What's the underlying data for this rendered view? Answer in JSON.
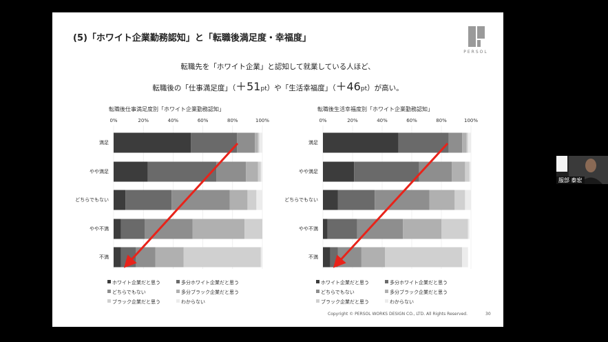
{
  "slide": {
    "title": "(5)「ホワイト企業勤務認知」と「転職後満足度・幸福度」",
    "logo_text": "PERSOL",
    "subtitle_line1": "転職先を「ホワイト企業」と認知して就業している人ほど、",
    "subtitle_line2_parts": [
      "転職後の「仕事満足度」（",
      "＋51",
      "pt",
      "）や「生活幸福度」（",
      "＋46",
      "pt",
      "）が高い。"
    ],
    "copyright": "Copyright © PERSOL WORKS DESIGN CO., LTD. All Rights Reserved.",
    "page_number": "30"
  },
  "chart_data": [
    {
      "type": "bar",
      "stacked": true,
      "orientation": "horizontal",
      "title": "転職後仕事満足度別「ホワイト企業勤務認知」",
      "categories": [
        "満足",
        "やや満足",
        "どちらでもない",
        "やや不満",
        "不満"
      ],
      "ticks": [
        "0%",
        "20%",
        "40%",
        "60%",
        "80%",
        "100%"
      ],
      "xlim": [
        0,
        100
      ],
      "series": [
        {
          "name": "ホワイト企業だと思う",
          "color": "#3c3c3c",
          "values": [
            52,
            23,
            8,
            5,
            5
          ]
        },
        {
          "name": "多分ホワイト企業だと思う",
          "color": "#6a6a6a",
          "values": [
            31,
            46,
            31,
            16,
            10
          ]
        },
        {
          "name": "どちらでもない",
          "color": "#8e8e8e",
          "values": [
            12,
            20,
            39,
            32,
            13
          ]
        },
        {
          "name": "多分ブラック企業だと思う",
          "color": "#b0b0b0",
          "values": [
            2,
            8,
            12,
            35,
            19
          ]
        },
        {
          "name": "ブラック企業だと思う",
          "color": "#d0d0d0",
          "values": [
            1,
            2,
            6,
            12,
            52
          ]
        },
        {
          "name": "わからない",
          "color": "#ececec",
          "values": [
            2,
            1,
            4,
            0,
            1
          ]
        }
      ]
    },
    {
      "type": "bar",
      "stacked": true,
      "orientation": "horizontal",
      "title": "転職後生活幸福度別「ホワイト企業勤務認知」",
      "categories": [
        "満足",
        "やや満足",
        "どちらでもない",
        "やや不満",
        "不満"
      ],
      "ticks": [
        "0%",
        "20%",
        "40%",
        "60%",
        "80%",
        "100%"
      ],
      "xlim": [
        0,
        100
      ],
      "series": [
        {
          "name": "ホワイト企業だと思う",
          "color": "#3c3c3c",
          "values": [
            51,
            21,
            10,
            3,
            5
          ]
        },
        {
          "name": "多分ホワイト企業だと思う",
          "color": "#6a6a6a",
          "values": [
            34,
            44,
            25,
            20,
            5
          ]
        },
        {
          "name": "どちらでもない",
          "color": "#8e8e8e",
          "values": [
            9,
            22,
            37,
            31,
            16
          ]
        },
        {
          "name": "多分ブラック企業だと思う",
          "color": "#b0b0b0",
          "values": [
            3,
            9,
            17,
            26,
            16
          ]
        },
        {
          "name": "ブラック企業だと思う",
          "color": "#d0d0d0",
          "values": [
            1,
            3,
            7,
            18,
            52
          ]
        },
        {
          "name": "わからない",
          "color": "#ececec",
          "values": [
            2,
            1,
            4,
            1,
            4
          ]
        }
      ]
    }
  ],
  "annotation_arrow_color": "#e8231a",
  "video": {
    "participant_name": "服部 泰宏"
  }
}
